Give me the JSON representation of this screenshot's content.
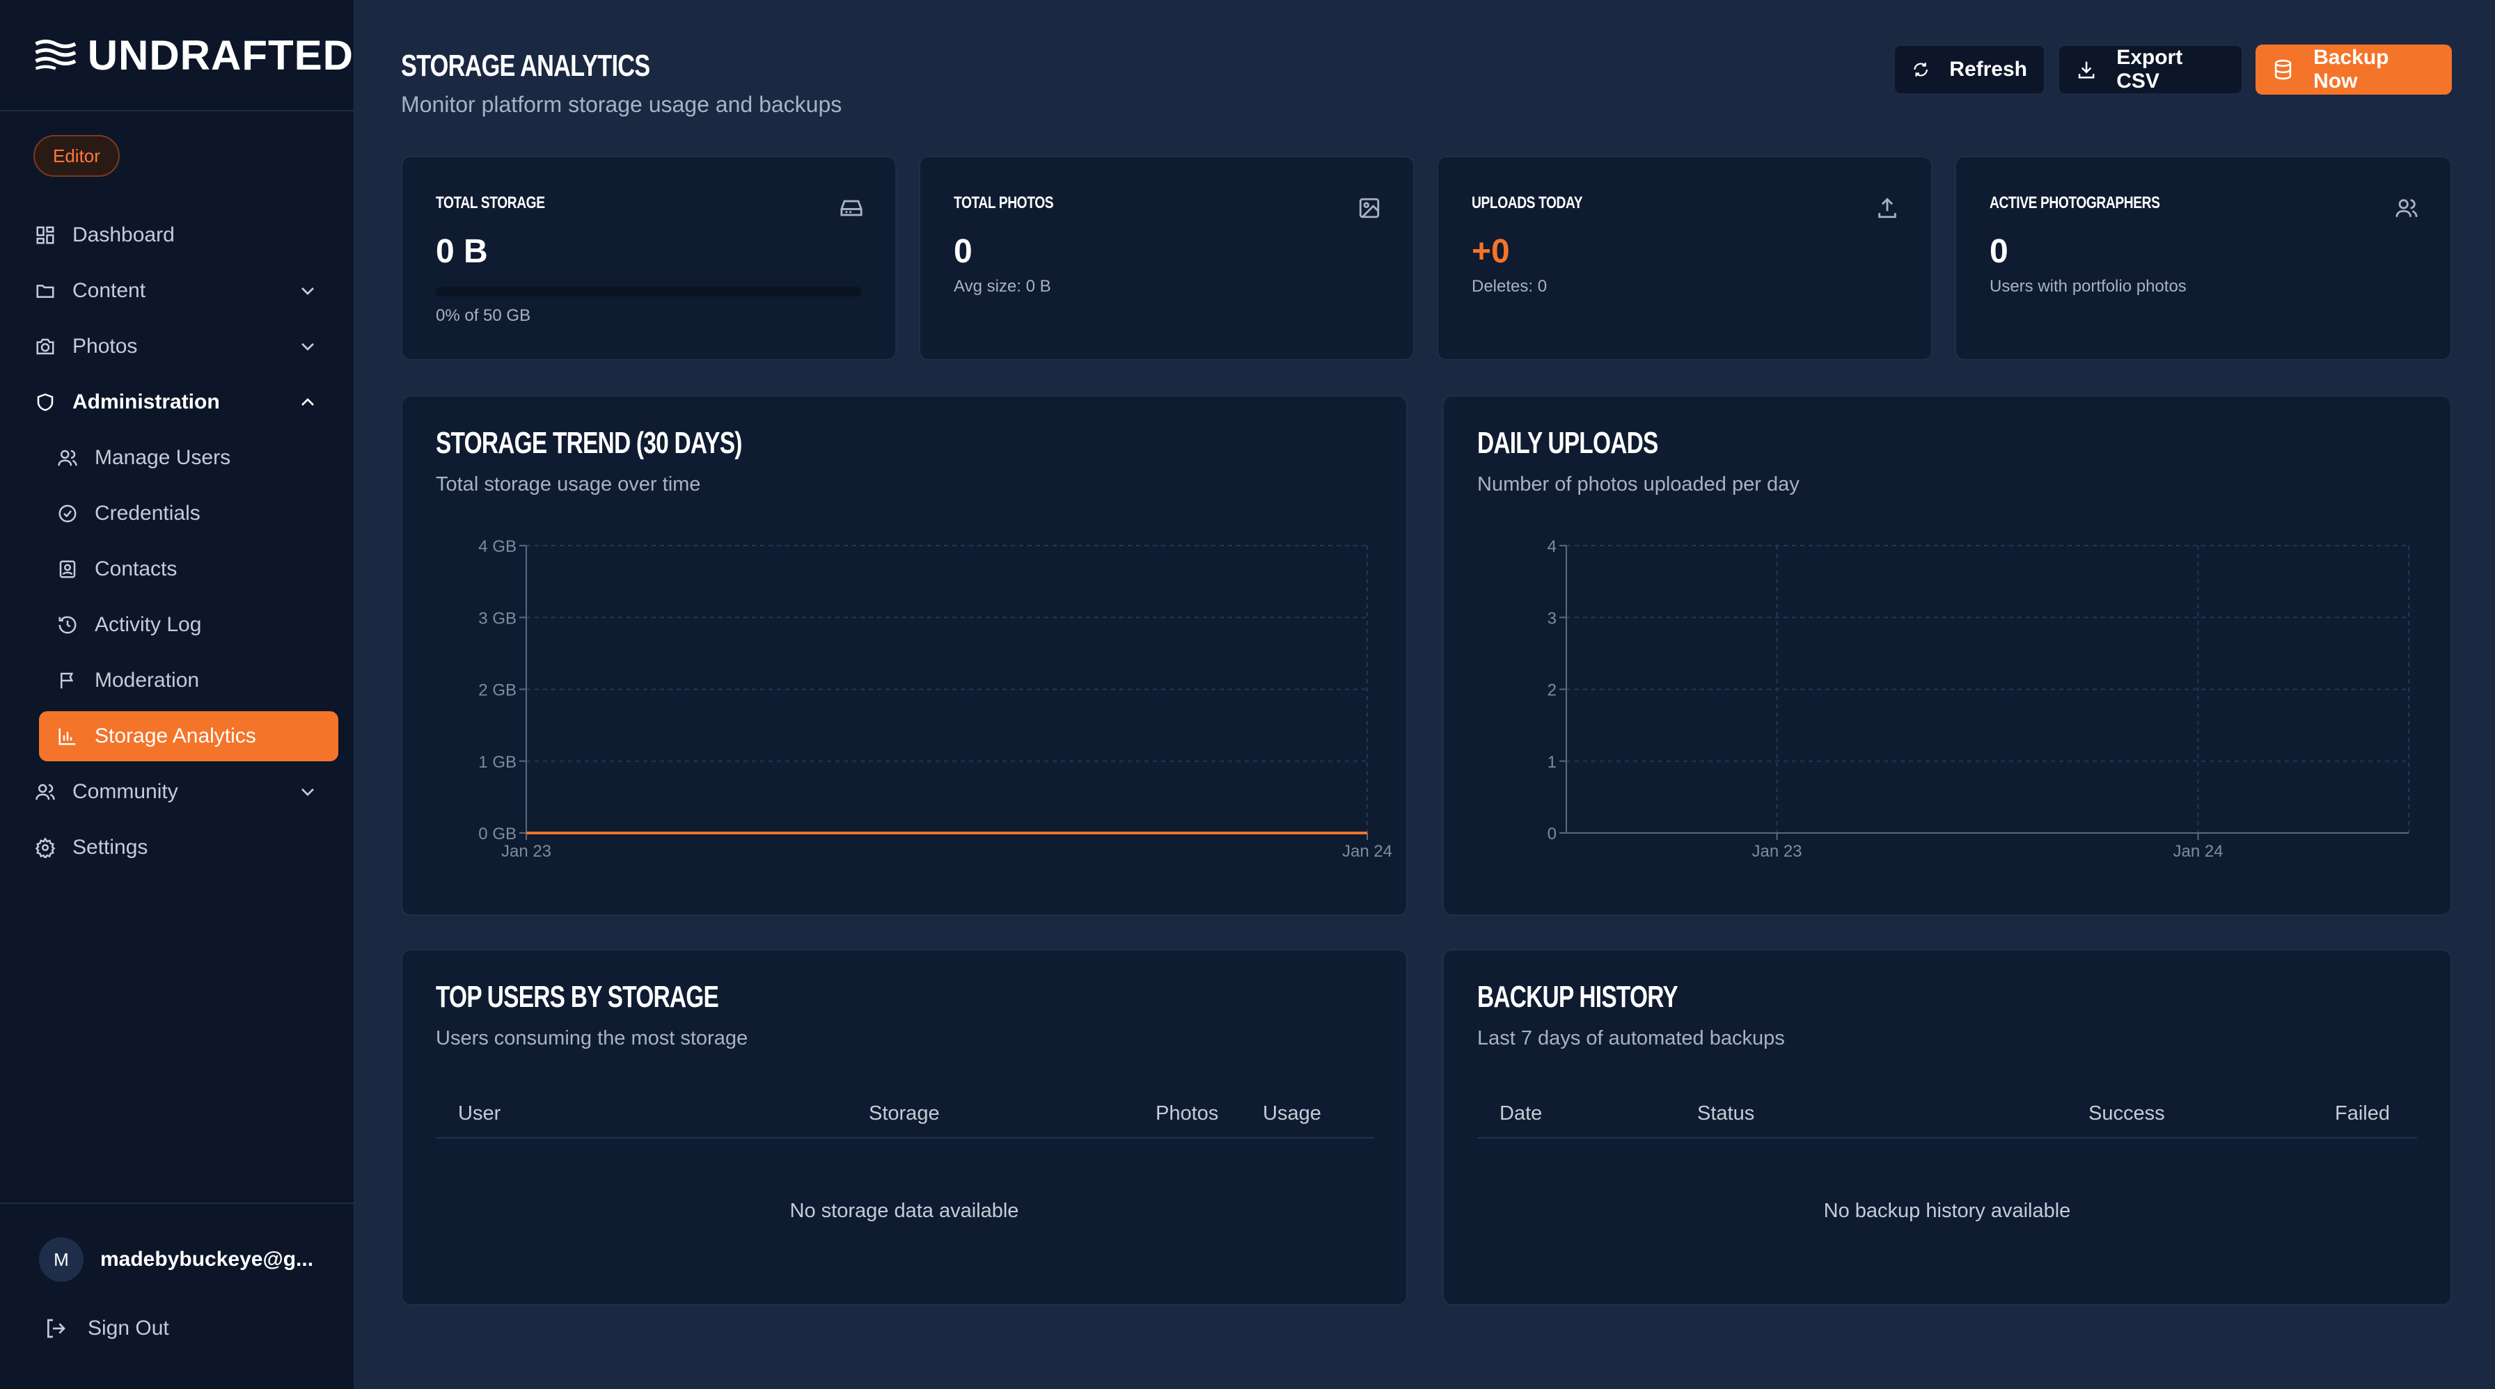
{
  "brand": {
    "name": "UNDRAFTED"
  },
  "role": "Editor",
  "sidebar": {
    "items": [
      {
        "label": "Dashboard",
        "icon": "dashboard-icon"
      },
      {
        "label": "Content",
        "icon": "folder-icon",
        "expandable": true
      },
      {
        "label": "Photos",
        "icon": "camera-icon",
        "expandable": true
      },
      {
        "label": "Administration",
        "icon": "shield-icon",
        "expanded": true
      },
      {
        "label": "Manage Users",
        "icon": "users-icon"
      },
      {
        "label": "Credentials",
        "icon": "badge-check-icon"
      },
      {
        "label": "Contacts",
        "icon": "contact-icon"
      },
      {
        "label": "Activity Log",
        "icon": "history-icon"
      },
      {
        "label": "Moderation",
        "icon": "flag-icon"
      },
      {
        "label": "Storage Analytics",
        "icon": "bar-chart-icon",
        "active": true
      },
      {
        "label": "Community",
        "icon": "users-icon",
        "expandable": true
      },
      {
        "label": "Settings",
        "icon": "gear-icon"
      }
    ]
  },
  "user": {
    "initial": "M",
    "email": "madebybuckeye@g..."
  },
  "signout": "Sign Out",
  "header": {
    "title": "STORAGE ANALYTICS",
    "subtitle": "Monitor platform storage usage and backups",
    "refresh": "Refresh",
    "export": "Export CSV",
    "backup": "Backup Now"
  },
  "stats": {
    "total_storage": {
      "label": "TOTAL STORAGE",
      "value": "0 B",
      "sub": "0% of 50 GB",
      "percent": 0
    },
    "total_photos": {
      "label": "TOTAL PHOTOS",
      "value": "0",
      "sub": "Avg size: 0 B"
    },
    "uploads_today": {
      "label": "UPLOADS TODAY",
      "value": "+0",
      "sub": "Deletes: 0"
    },
    "active_photographers": {
      "label": "ACTIVE PHOTOGRAPHERS",
      "value": "0",
      "sub": "Users with portfolio photos"
    }
  },
  "trend": {
    "title": "STORAGE TREND (30 DAYS)",
    "subtitle": "Total storage usage over time"
  },
  "uploads": {
    "title": "DAILY UPLOADS",
    "subtitle": "Number of photos uploaded per day"
  },
  "top_users": {
    "title": "TOP USERS BY STORAGE",
    "subtitle": "Users consuming the most storage",
    "columns": [
      "User",
      "Storage",
      "Photos",
      "Usage"
    ],
    "empty": "No storage data available"
  },
  "backups": {
    "title": "BACKUP HISTORY",
    "subtitle": "Last 7 days of automated backups",
    "columns": [
      "Date",
      "Status",
      "Success",
      "Failed"
    ],
    "empty": "No backup history available"
  },
  "colors": {
    "accent": "#f47429",
    "bg": "#1a2842",
    "card": "#0f1b30",
    "sidebar": "#0c1628"
  },
  "chart_data": [
    {
      "type": "line",
      "x": [
        "Jan 23",
        "Jan 24"
      ],
      "series": [
        {
          "values": [
            0,
            0
          ]
        }
      ],
      "yticks": [
        "0 GB",
        "1 GB",
        "2 GB",
        "3 GB",
        "4 GB"
      ],
      "ylim": [
        0,
        4
      ],
      "grid": true
    },
    {
      "type": "bar",
      "categories": [
        "Jan 23",
        "Jan 24"
      ],
      "values": [
        0,
        0
      ],
      "yticks": [
        "0",
        "1",
        "2",
        "3",
        "4"
      ],
      "ylim": [
        0,
        4
      ],
      "grid": true
    }
  ]
}
